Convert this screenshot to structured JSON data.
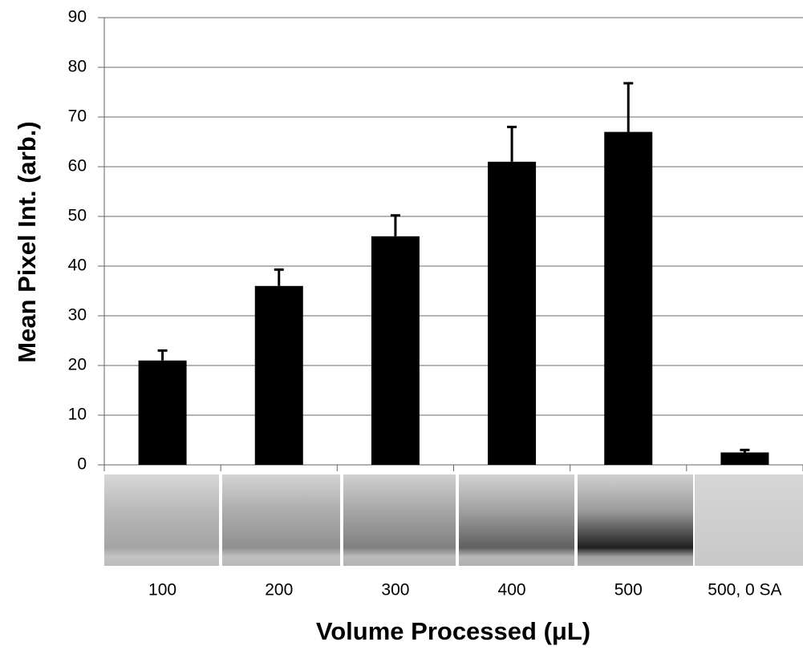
{
  "chart_data": {
    "type": "bar",
    "x_label": "Volume Processed (μL)",
    "y_label": "Mean Pixel Int. (arb.)",
    "categories": [
      "100",
      "200",
      "300",
      "400",
      "500",
      "500, 0 SA"
    ],
    "values": [
      21,
      36,
      46,
      61,
      67,
      2.5
    ],
    "errors": [
      2,
      3.3,
      4.2,
      7,
      9.8,
      0.5
    ],
    "color": "#000000",
    "ylim": [
      0,
      90
    ],
    "yticks": [
      0,
      10,
      20,
      30,
      40,
      50,
      60,
      70,
      80,
      90
    ],
    "grid": true
  }
}
